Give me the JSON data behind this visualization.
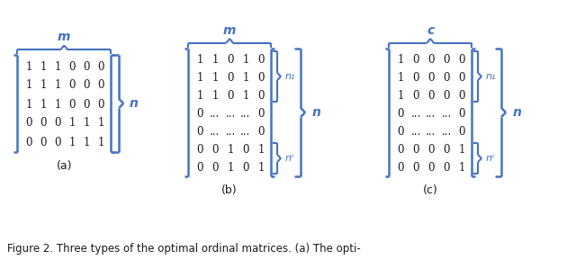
{
  "title": "Figure 2. Three types of the optimal ordinal matrices. (a) The opti-",
  "bg_color": "#ffffff",
  "bracket_color": "#4472c4",
  "text_color": "#1a1a1a",
  "matrix_a": [
    [
      "1",
      "1",
      "1",
      "0",
      "0",
      "0"
    ],
    [
      "1",
      "1",
      "1",
      "0",
      "0",
      "0"
    ],
    [
      "1",
      "1",
      "1",
      "0",
      "0",
      "0"
    ],
    [
      "0",
      "0",
      "0",
      "1",
      "1",
      "1"
    ],
    [
      "0",
      "0",
      "0",
      "1",
      "1",
      "1"
    ]
  ],
  "matrix_b": [
    [
      "1",
      "1",
      "0",
      "1",
      "0"
    ],
    [
      "1",
      "1",
      "0",
      "1",
      "0"
    ],
    [
      "1",
      "1",
      "0",
      "1",
      "0"
    ],
    [
      "0",
      "...",
      "...",
      "...",
      "0"
    ],
    [
      "0",
      "...",
      "...",
      "...",
      "0"
    ],
    [
      "0",
      "0",
      "1",
      "0",
      "1"
    ],
    [
      "0",
      "0",
      "1",
      "0",
      "1"
    ]
  ],
  "matrix_c": [
    [
      "1",
      "0",
      "0",
      "0",
      "0"
    ],
    [
      "1",
      "0",
      "0",
      "0",
      "0"
    ],
    [
      "1",
      "0",
      "0",
      "0",
      "0"
    ],
    [
      "0",
      "...",
      "...",
      "...",
      "0"
    ],
    [
      "0",
      "...",
      "...",
      "...",
      "0"
    ],
    [
      "0",
      "0",
      "0",
      "0",
      "1"
    ],
    [
      "0",
      "0",
      "0",
      "0",
      "1"
    ]
  ],
  "label_m_a": "m",
  "label_m_b": "m",
  "label_c": "c",
  "label_n_a": "n",
  "label_n_b": "n",
  "label_n_c": "n",
  "label_n1_b": "n₁",
  "label_nc_b": "nᶜ",
  "label_n1_c": "n₁",
  "label_nc_c": "nᶜ"
}
